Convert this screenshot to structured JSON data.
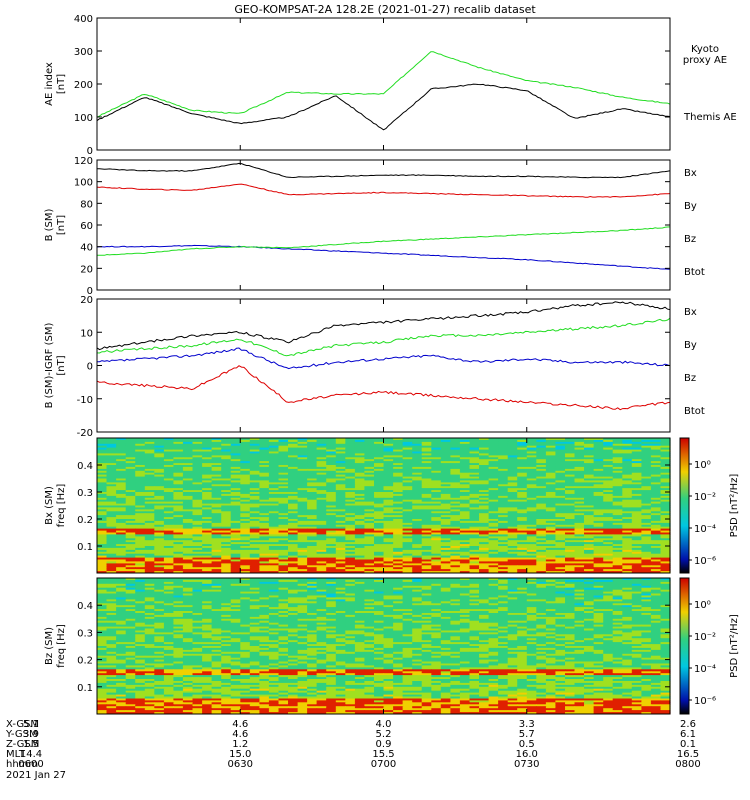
{
  "title": "GEO-KOMPSAT-2A 128.2E (2021-01-27) recalib dataset",
  "chart_data": [
    {
      "type": "line",
      "ylabel": "AE index\n[nT]",
      "ylim": [
        0,
        400
      ],
      "yticks": [
        0,
        100,
        200,
        300,
        400
      ],
      "x": [
        "0600",
        "0610",
        "0620",
        "0630",
        "0640",
        "0650",
        "0700",
        "0710",
        "0720",
        "0730",
        "0740",
        "0750",
        "0800"
      ],
      "series": [
        {
          "name": "Kyoto\nproxy AE",
          "color": "#22dd22",
          "values": [
            100,
            170,
            120,
            110,
            175,
            170,
            170,
            300,
            250,
            210,
            190,
            160,
            140
          ]
        },
        {
          "name": "Themis AE",
          "color": "#000000",
          "values": [
            90,
            160,
            110,
            80,
            100,
            165,
            60,
            185,
            200,
            180,
            95,
            125,
            100
          ]
        }
      ]
    },
    {
      "type": "line",
      "ylabel": "B (SM)\n[nT]",
      "ylim": [
        0,
        120
      ],
      "yticks": [
        0,
        20,
        40,
        60,
        80,
        100,
        120
      ],
      "x": [
        "0600",
        "0610",
        "0620",
        "0630",
        "0640",
        "0650",
        "0700",
        "0710",
        "0720",
        "0730",
        "0740",
        "0750",
        "0800"
      ],
      "series": [
        {
          "name": "Bx",
          "color": "#0000cc",
          "values": [
            40,
            40,
            41,
            40,
            38,
            36,
            34,
            32,
            30,
            28,
            25,
            22,
            19
          ]
        },
        {
          "name": "By",
          "color": "#22dd22",
          "values": [
            32,
            34,
            38,
            40,
            39,
            42,
            45,
            47,
            49,
            51,
            53,
            55,
            58
          ]
        },
        {
          "name": "Bz",
          "color": "#dd0000",
          "values": [
            95,
            93,
            92,
            98,
            88,
            89,
            90,
            89,
            88,
            87,
            86,
            86,
            89
          ]
        },
        {
          "name": "Btot",
          "color": "#000000",
          "values": [
            112,
            110,
            110,
            117,
            104,
            105,
            106,
            106,
            105,
            105,
            104,
            104,
            110
          ]
        }
      ]
    },
    {
      "type": "line",
      "ylabel": "B (SM)-IGRF (SM)\n[nT]",
      "ylim": [
        -20,
        20
      ],
      "yticks": [
        -20,
        -10,
        0,
        10,
        20
      ],
      "x": [
        "0600",
        "0610",
        "0620",
        "0630",
        "0640",
        "0650",
        "0700",
        "0710",
        "0720",
        "0730",
        "0740",
        "0750",
        "0800"
      ],
      "series": [
        {
          "name": "Bx",
          "color": "#0000cc",
          "values": [
            1,
            2,
            3,
            5,
            -1,
            1,
            2,
            3,
            1,
            2,
            1,
            1,
            0
          ]
        },
        {
          "name": "By",
          "color": "#22dd22",
          "values": [
            4,
            5,
            6,
            8,
            3,
            6,
            7,
            9,
            9,
            10,
            11,
            12,
            14
          ]
        },
        {
          "name": "Bz",
          "color": "#dd0000",
          "values": [
            -5,
            -6,
            -7,
            0,
            -11,
            -9,
            -8,
            -9,
            -10,
            -11,
            -12,
            -13,
            -11
          ]
        },
        {
          "name": "Btot",
          "color": "#000000",
          "values": [
            5,
            7,
            9,
            10,
            7,
            12,
            13,
            14,
            15,
            16,
            18,
            19,
            17
          ]
        }
      ]
    },
    {
      "type": "heatmap",
      "ylabel": "Bx (SM)\nfreq [Hz]",
      "yticks": [
        0.1,
        0.2,
        0.3,
        0.4
      ],
      "ylim": [
        0,
        0.5
      ],
      "colorbar_label": "PSD [nT²/Hz]",
      "colorbar_ticks": [
        "10⁰",
        "10⁻²",
        "10⁻⁴",
        "10⁻⁶"
      ]
    },
    {
      "type": "heatmap",
      "ylabel": "Bz (SM)\nfreq [Hz]",
      "yticks": [
        0.1,
        0.2,
        0.3,
        0.4
      ],
      "ylim": [
        0,
        0.5
      ],
      "colorbar_label": "PSD [nT²/Hz]",
      "colorbar_ticks": [
        "10⁰",
        "10⁻²",
        "10⁻⁴",
        "10⁻⁶"
      ]
    }
  ],
  "x_axis": {
    "row_labels": [
      "X-GSM",
      "Y-GSM",
      "Z-GSM",
      "MLT",
      "hhmm"
    ],
    "ticks": [
      [
        "5.1",
        "3.9",
        "1.5",
        "14.4",
        "0600"
      ],
      [
        "4.6",
        "4.6",
        "1.2",
        "15.0",
        "0630"
      ],
      [
        "4.0",
        "5.2",
        "0.9",
        "15.5",
        "0700"
      ],
      [
        "3.3",
        "5.7",
        "0.5",
        "16.0",
        "0730"
      ],
      [
        "2.6",
        "6.1",
        "0.1",
        "16.5",
        "0800"
      ]
    ],
    "date": "2021 Jan 27"
  }
}
